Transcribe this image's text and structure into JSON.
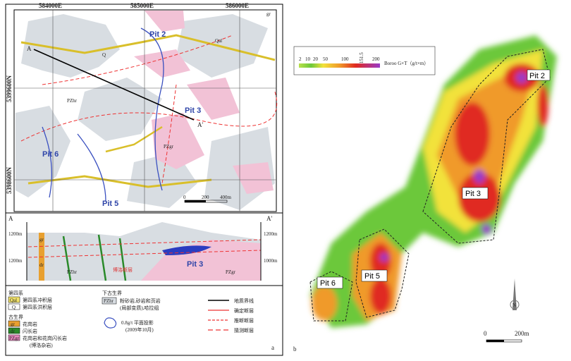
{
  "panel_a": {
    "map": {
      "coords_x": [
        "584000E",
        "585000E",
        "586000E"
      ],
      "coords_y": [
        "5399600N",
        "5398600N"
      ],
      "section_start": "A",
      "section_end": "A'",
      "pits": [
        "Pit 2",
        "Pit 3",
        "Pit 5",
        "Pit 6"
      ],
      "unit_labels": [
        "Q",
        "Qal",
        "PZhr",
        "PZgr",
        "gr"
      ],
      "scale": [
        "0",
        "200",
        "400m"
      ]
    },
    "section": {
      "start": "A",
      "end": "A'",
      "left_elevations": [
        "1200m",
        "1200m"
      ],
      "right_elevations": [
        "1200m",
        "1000m"
      ],
      "units": [
        "PZhr",
        "PZgr",
        "gr",
        "dr"
      ],
      "pit": "Pit 3",
      "fault": "博洛断层"
    },
    "legend": {
      "quaternary": {
        "title": "第四系",
        "items": [
          {
            "code": "Qal",
            "text": "第四系冲积层"
          },
          {
            "code": "Q",
            "text": "第四系洪积层"
          }
        ]
      },
      "paleozoic": {
        "title": "古生界",
        "items": [
          {
            "code": "gr",
            "text": "花岗岩"
          },
          {
            "code": "dr",
            "text": "闪长岩"
          },
          {
            "code": "PZgr",
            "text": "花岗岩和花岗闪长岩"
          }
        ],
        "note": "(博洛杂岩)"
      },
      "lower_paleozoic": {
        "title": "下古生界",
        "code": "PZhr",
        "text": "粉砂岩,砂岩和页岩",
        "text2": "(局部变质),哈拉组"
      },
      "outline": {
        "text": "0.8g/t 平面投影",
        "text2": "(2009年10月)"
      },
      "lines": [
        "地质界线",
        "确定断层",
        "推断断层",
        "猜测断层"
      ]
    },
    "label": "a"
  },
  "panel_b": {
    "colorbar": {
      "ticks": [
        "2",
        "10",
        "20",
        "50",
        "100",
        "151.5",
        "200"
      ],
      "title": "Boroo G×T（g/t×m）"
    },
    "pits": [
      "Pit 2",
      "Pit 3",
      "Pit 5",
      "Pit 6"
    ],
    "scale": [
      "0",
      "200m"
    ],
    "north": "N",
    "label": "b"
  }
}
